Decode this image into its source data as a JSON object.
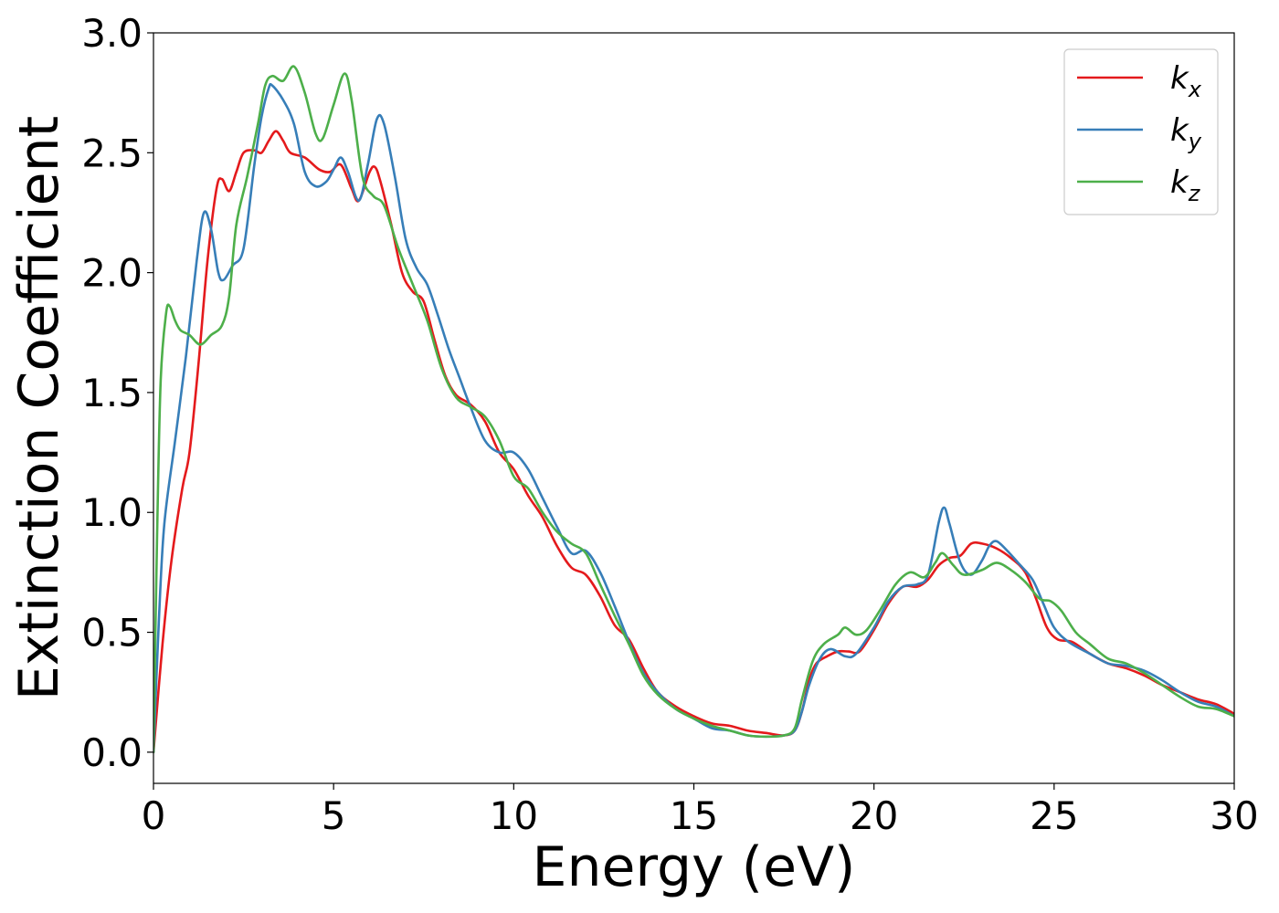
{
  "chart_data": {
    "type": "line",
    "xlabel": "Energy (eV)",
    "ylabel": "Extinction Coefficient",
    "xlim": [
      0,
      30
    ],
    "ylim": [
      -0.13,
      3.0
    ],
    "xticks": [
      0,
      5,
      10,
      15,
      20,
      25,
      30
    ],
    "xtick_labels": [
      "0",
      "5",
      "10",
      "15",
      "20",
      "25",
      "30"
    ],
    "yticks": [
      0.0,
      0.5,
      1.0,
      1.5,
      2.0,
      2.5,
      3.0
    ],
    "ytick_labels": [
      "0.0",
      "0.5",
      "1.0",
      "1.5",
      "2.0",
      "2.5",
      "3.0"
    ],
    "grid": false,
    "legend_position": "top-right",
    "series": [
      {
        "name": "k",
        "subscript": "x",
        "color": "#e41a1c",
        "points": [
          [
            0,
            0.0
          ],
          [
            0.25,
            0.45
          ],
          [
            0.5,
            0.8
          ],
          [
            0.8,
            1.1
          ],
          [
            1.0,
            1.25
          ],
          [
            1.25,
            1.62
          ],
          [
            1.5,
            2.05
          ],
          [
            1.75,
            2.35
          ],
          [
            1.9,
            2.39
          ],
          [
            2.1,
            2.34
          ],
          [
            2.3,
            2.42
          ],
          [
            2.5,
            2.5
          ],
          [
            2.8,
            2.51
          ],
          [
            3.0,
            2.5
          ],
          [
            3.2,
            2.55
          ],
          [
            3.4,
            2.59
          ],
          [
            3.6,
            2.55
          ],
          [
            3.8,
            2.5
          ],
          [
            4.2,
            2.48
          ],
          [
            4.6,
            2.43
          ],
          [
            4.9,
            2.42
          ],
          [
            5.2,
            2.45
          ],
          [
            5.5,
            2.35
          ],
          [
            5.7,
            2.3
          ],
          [
            6.0,
            2.42
          ],
          [
            6.15,
            2.44
          ],
          [
            6.3,
            2.38
          ],
          [
            6.6,
            2.2
          ],
          [
            6.9,
            2.0
          ],
          [
            7.2,
            1.92
          ],
          [
            7.5,
            1.88
          ],
          [
            7.8,
            1.72
          ],
          [
            8.1,
            1.57
          ],
          [
            8.4,
            1.49
          ],
          [
            8.8,
            1.45
          ],
          [
            9.2,
            1.38
          ],
          [
            9.6,
            1.25
          ],
          [
            10.0,
            1.18
          ],
          [
            10.4,
            1.07
          ],
          [
            10.8,
            0.98
          ],
          [
            11.2,
            0.86
          ],
          [
            11.6,
            0.77
          ],
          [
            12.0,
            0.74
          ],
          [
            12.4,
            0.65
          ],
          [
            12.8,
            0.53
          ],
          [
            13.2,
            0.47
          ],
          [
            13.6,
            0.35
          ],
          [
            14.0,
            0.25
          ],
          [
            14.5,
            0.19
          ],
          [
            15.0,
            0.15
          ],
          [
            15.5,
            0.12
          ],
          [
            16.0,
            0.11
          ],
          [
            16.5,
            0.09
          ],
          [
            17.0,
            0.08
          ],
          [
            17.5,
            0.07
          ],
          [
            17.8,
            0.09
          ],
          [
            18.0,
            0.17
          ],
          [
            18.2,
            0.3
          ],
          [
            18.4,
            0.37
          ],
          [
            18.7,
            0.4
          ],
          [
            19.0,
            0.42
          ],
          [
            19.3,
            0.42
          ],
          [
            19.6,
            0.42
          ],
          [
            20.0,
            0.51
          ],
          [
            20.4,
            0.62
          ],
          [
            20.8,
            0.69
          ],
          [
            21.2,
            0.69
          ],
          [
            21.5,
            0.72
          ],
          [
            21.8,
            0.78
          ],
          [
            22.1,
            0.81
          ],
          [
            22.4,
            0.82
          ],
          [
            22.7,
            0.87
          ],
          [
            23.0,
            0.87
          ],
          [
            23.4,
            0.85
          ],
          [
            23.8,
            0.81
          ],
          [
            24.2,
            0.75
          ],
          [
            24.5,
            0.64
          ],
          [
            24.8,
            0.52
          ],
          [
            25.1,
            0.47
          ],
          [
            25.5,
            0.46
          ],
          [
            26.0,
            0.41
          ],
          [
            26.5,
            0.37
          ],
          [
            27.0,
            0.35
          ],
          [
            27.5,
            0.32
          ],
          [
            28.0,
            0.28
          ],
          [
            28.5,
            0.25
          ],
          [
            29.0,
            0.22
          ],
          [
            29.5,
            0.2
          ],
          [
            30.0,
            0.16
          ]
        ]
      },
      {
        "name": "k",
        "subscript": "y",
        "color": "#377eb8",
        "points": [
          [
            0,
            0.0
          ],
          [
            0.15,
            0.55
          ],
          [
            0.3,
            0.95
          ],
          [
            0.6,
            1.3
          ],
          [
            0.9,
            1.65
          ],
          [
            1.2,
            2.05
          ],
          [
            1.4,
            2.25
          ],
          [
            1.6,
            2.18
          ],
          [
            1.8,
            2.0
          ],
          [
            1.95,
            1.97
          ],
          [
            2.2,
            2.03
          ],
          [
            2.5,
            2.1
          ],
          [
            2.8,
            2.45
          ],
          [
            3.0,
            2.65
          ],
          [
            3.2,
            2.77
          ],
          [
            3.3,
            2.78
          ],
          [
            3.6,
            2.72
          ],
          [
            3.9,
            2.62
          ],
          [
            4.2,
            2.42
          ],
          [
            4.5,
            2.36
          ],
          [
            4.8,
            2.38
          ],
          [
            5.0,
            2.43
          ],
          [
            5.2,
            2.48
          ],
          [
            5.4,
            2.42
          ],
          [
            5.7,
            2.3
          ],
          [
            5.95,
            2.45
          ],
          [
            6.2,
            2.64
          ],
          [
            6.4,
            2.62
          ],
          [
            6.7,
            2.4
          ],
          [
            7.0,
            2.14
          ],
          [
            7.3,
            2.02
          ],
          [
            7.6,
            1.95
          ],
          [
            7.9,
            1.82
          ],
          [
            8.2,
            1.68
          ],
          [
            8.5,
            1.56
          ],
          [
            8.8,
            1.44
          ],
          [
            9.2,
            1.3
          ],
          [
            9.6,
            1.25
          ],
          [
            10.0,
            1.25
          ],
          [
            10.4,
            1.18
          ],
          [
            10.8,
            1.06
          ],
          [
            11.2,
            0.94
          ],
          [
            11.6,
            0.83
          ],
          [
            12.0,
            0.84
          ],
          [
            12.4,
            0.75
          ],
          [
            12.8,
            0.61
          ],
          [
            13.2,
            0.46
          ],
          [
            13.6,
            0.33
          ],
          [
            14.0,
            0.25
          ],
          [
            14.5,
            0.18
          ],
          [
            15.0,
            0.14
          ],
          [
            15.5,
            0.1
          ],
          [
            16.0,
            0.09
          ],
          [
            16.5,
            0.07
          ],
          [
            17.0,
            0.065
          ],
          [
            17.5,
            0.07
          ],
          [
            17.8,
            0.09
          ],
          [
            18.0,
            0.17
          ],
          [
            18.2,
            0.28
          ],
          [
            18.5,
            0.39
          ],
          [
            18.8,
            0.43
          ],
          [
            19.2,
            0.4
          ],
          [
            19.5,
            0.41
          ],
          [
            20.0,
            0.52
          ],
          [
            20.4,
            0.63
          ],
          [
            20.8,
            0.69
          ],
          [
            21.2,
            0.7
          ],
          [
            21.5,
            0.74
          ],
          [
            21.8,
            0.96
          ],
          [
            21.95,
            1.02
          ],
          [
            22.1,
            0.95
          ],
          [
            22.4,
            0.79
          ],
          [
            22.7,
            0.74
          ],
          [
            23.0,
            0.8
          ],
          [
            23.2,
            0.86
          ],
          [
            23.4,
            0.88
          ],
          [
            23.7,
            0.84
          ],
          [
            24.0,
            0.79
          ],
          [
            24.4,
            0.72
          ],
          [
            24.7,
            0.62
          ],
          [
            25.0,
            0.52
          ],
          [
            25.4,
            0.46
          ],
          [
            26.0,
            0.41
          ],
          [
            26.5,
            0.37
          ],
          [
            27.0,
            0.36
          ],
          [
            27.5,
            0.34
          ],
          [
            28.0,
            0.3
          ],
          [
            28.5,
            0.25
          ],
          [
            29.0,
            0.21
          ],
          [
            29.5,
            0.19
          ],
          [
            30.0,
            0.15
          ]
        ]
      },
      {
        "name": "k",
        "subscript": "z",
        "color": "#4daf4a",
        "points": [
          [
            0,
            0.0
          ],
          [
            0.1,
            0.9
          ],
          [
            0.2,
            1.55
          ],
          [
            0.35,
            1.83
          ],
          [
            0.45,
            1.86
          ],
          [
            0.6,
            1.8
          ],
          [
            0.75,
            1.76
          ],
          [
            1.0,
            1.74
          ],
          [
            1.3,
            1.7
          ],
          [
            1.6,
            1.74
          ],
          [
            1.9,
            1.78
          ],
          [
            2.1,
            1.9
          ],
          [
            2.3,
            2.2
          ],
          [
            2.6,
            2.4
          ],
          [
            2.9,
            2.62
          ],
          [
            3.1,
            2.78
          ],
          [
            3.3,
            2.82
          ],
          [
            3.6,
            2.8
          ],
          [
            3.9,
            2.86
          ],
          [
            4.2,
            2.75
          ],
          [
            4.5,
            2.58
          ],
          [
            4.7,
            2.56
          ],
          [
            5.0,
            2.7
          ],
          [
            5.3,
            2.83
          ],
          [
            5.5,
            2.72
          ],
          [
            5.8,
            2.4
          ],
          [
            6.1,
            2.32
          ],
          [
            6.4,
            2.28
          ],
          [
            6.8,
            2.1
          ],
          [
            7.2,
            1.95
          ],
          [
            7.6,
            1.8
          ],
          [
            8.0,
            1.6
          ],
          [
            8.4,
            1.48
          ],
          [
            8.8,
            1.44
          ],
          [
            9.2,
            1.4
          ],
          [
            9.6,
            1.3
          ],
          [
            10.0,
            1.15
          ],
          [
            10.4,
            1.1
          ],
          [
            10.8,
            1.0
          ],
          [
            11.2,
            0.92
          ],
          [
            11.6,
            0.87
          ],
          [
            12.0,
            0.83
          ],
          [
            12.4,
            0.7
          ],
          [
            12.8,
            0.57
          ],
          [
            13.2,
            0.45
          ],
          [
            13.6,
            0.32
          ],
          [
            14.0,
            0.24
          ],
          [
            14.5,
            0.18
          ],
          [
            15.0,
            0.14
          ],
          [
            15.5,
            0.11
          ],
          [
            16.0,
            0.09
          ],
          [
            16.5,
            0.07
          ],
          [
            17.0,
            0.065
          ],
          [
            17.5,
            0.07
          ],
          [
            17.8,
            0.1
          ],
          [
            18.0,
            0.22
          ],
          [
            18.3,
            0.38
          ],
          [
            18.6,
            0.45
          ],
          [
            19.0,
            0.49
          ],
          [
            19.2,
            0.52
          ],
          [
            19.5,
            0.49
          ],
          [
            19.8,
            0.51
          ],
          [
            20.2,
            0.6
          ],
          [
            20.6,
            0.7
          ],
          [
            21.0,
            0.75
          ],
          [
            21.4,
            0.73
          ],
          [
            21.7,
            0.79
          ],
          [
            21.9,
            0.83
          ],
          [
            22.2,
            0.78
          ],
          [
            22.5,
            0.74
          ],
          [
            23.0,
            0.76
          ],
          [
            23.4,
            0.79
          ],
          [
            23.8,
            0.76
          ],
          [
            24.2,
            0.71
          ],
          [
            24.6,
            0.64
          ],
          [
            24.9,
            0.63
          ],
          [
            25.2,
            0.59
          ],
          [
            25.6,
            0.5
          ],
          [
            26.0,
            0.45
          ],
          [
            26.5,
            0.39
          ],
          [
            27.0,
            0.37
          ],
          [
            27.5,
            0.33
          ],
          [
            28.0,
            0.28
          ],
          [
            28.5,
            0.23
          ],
          [
            29.0,
            0.19
          ],
          [
            29.5,
            0.18
          ],
          [
            30.0,
            0.15
          ]
        ]
      }
    ]
  }
}
